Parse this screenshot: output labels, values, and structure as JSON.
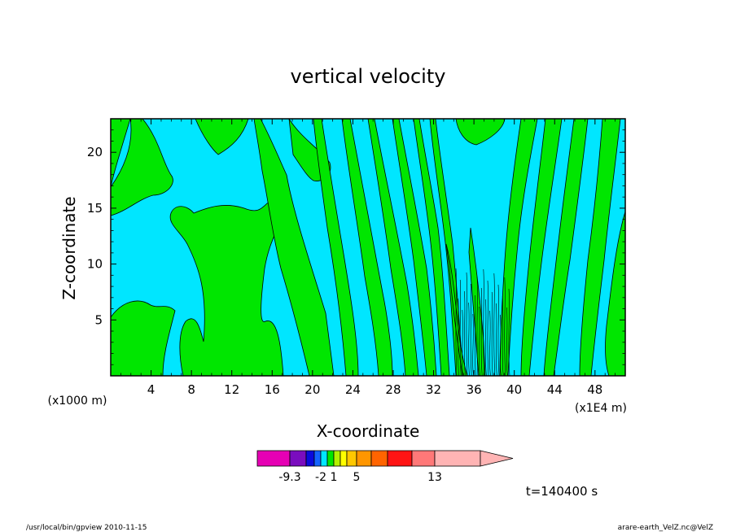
{
  "chart_data": {
    "type": "heatmap",
    "title": "vertical velocity",
    "xlabel": "X-coordinate",
    "ylabel": "Z-coordinate",
    "x_unit": "(x1000 m)",
    "x_unit_secondary": "(x1E4 m)",
    "xlim": [
      0,
      51
    ],
    "ylim": [
      0,
      23
    ],
    "x_ticks": [
      4,
      8,
      12,
      16,
      20,
      24,
      28,
      32,
      36,
      40,
      44,
      48
    ],
    "y_ticks": [
      5,
      10,
      15,
      20
    ],
    "colors": {
      "positive": "#00e600",
      "negative": "#00e6ff",
      "contour": "#000000"
    },
    "colorbar": {
      "colors": [
        "#e600b4",
        "#7a0dbe",
        "#0a0adc",
        "#1464ff",
        "#00e6ff",
        "#00e600",
        "#b4f000",
        "#ffff00",
        "#ffc800",
        "#ff9600",
        "#ff6400",
        "#ff1414",
        "#ff7878",
        "#ffb4b4"
      ],
      "labels": [
        {
          "value": "-9.3",
          "index": 1
        },
        {
          "value": "-2",
          "index": 4
        },
        {
          "value": "1",
          "index": 6
        },
        {
          "value": "5",
          "index": 9
        },
        {
          "value": "13",
          "index": 13
        }
      ]
    },
    "time_label": "t=140400 s"
  },
  "footer": {
    "left": "/usr/local/bin/gpview   2010-11-15",
    "right": "arare-earth_VelZ.nc@VelZ"
  }
}
